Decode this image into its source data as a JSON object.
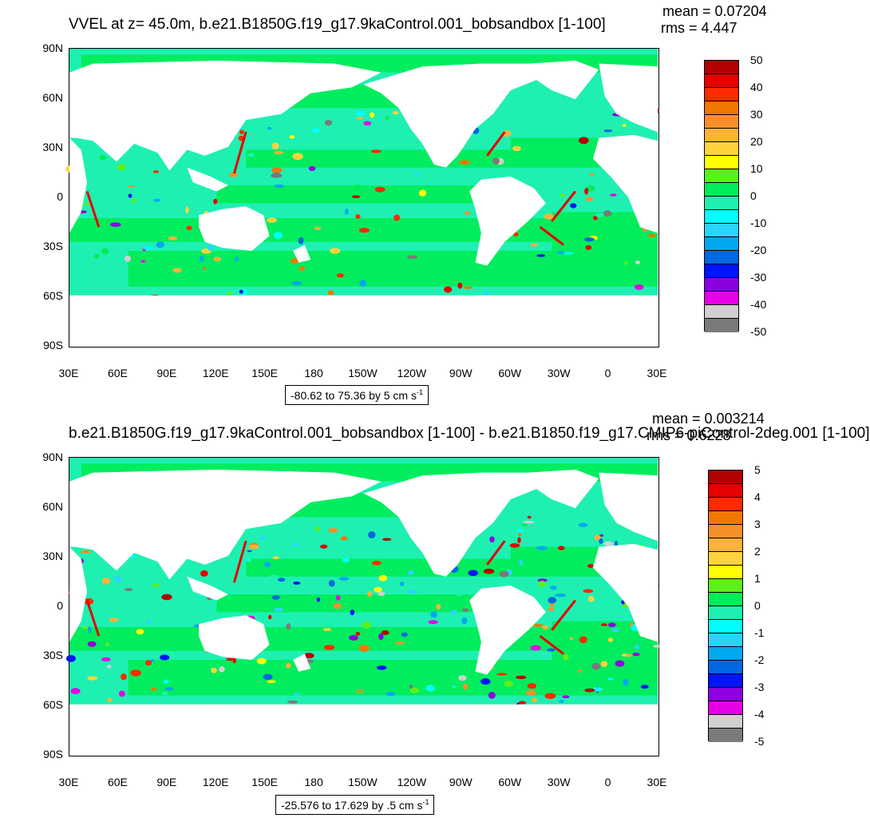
{
  "panels": [
    {
      "id": "top",
      "title": "VVEL at z=  45.0m, b.e21.B1850G.f19_g17.9kaControl.001_bobsandbox [1-100]",
      "mean_label": "mean = 0.07204",
      "rms_label": "rms = 4.447",
      "range_label": "-80.62 to 75.36 by 5 cm s",
      "range_unit_exp": "-1",
      "colorbar_labels": [
        "50",
        "40",
        "30",
        "20",
        "10",
        "0",
        "-10",
        "-20",
        "-30",
        "-40",
        "-50"
      ],
      "colorbar_colors": [
        "#b30000",
        "#e60000",
        "#ff2a00",
        "#f07800",
        "#f6902a",
        "#fdb23a",
        "#ffd33d",
        "#ffff00",
        "#5cf01a",
        "#00ec5a",
        "#1ef0b2",
        "#00ffff",
        "#2ad4ff",
        "#00a8f0",
        "#0068e0",
        "#0014ff",
        "#8c00e0",
        "#e600e6",
        "#d0d0d0",
        "#7a7a7a"
      ]
    },
    {
      "id": "bottom",
      "title": "b.e21.B1850G.f19_g17.9kaControl.001_bobsandbox [1-100] - b.e21.B1850.f19_g17.CMIP6-piControl-2deg.001 [1-100]",
      "mean_label": "mean = 0.003214",
      "rms_label": "rms = 0.6228",
      "range_label": "-25.576 to 17.629 by .5 cm s",
      "range_unit_exp": "-1",
      "colorbar_labels": [
        "5",
        "4",
        "3",
        "2",
        "1",
        "0",
        "-1",
        "-2",
        "-3",
        "-4",
        "-5"
      ],
      "colorbar_colors": [
        "#b30000",
        "#e60000",
        "#ff2a00",
        "#f07800",
        "#f6902a",
        "#fdb23a",
        "#ffd33d",
        "#ffff00",
        "#5cf01a",
        "#00ec5a",
        "#1ef0b2",
        "#00ffff",
        "#2ad4ff",
        "#00a8f0",
        "#0068e0",
        "#0014ff",
        "#8c00e0",
        "#e600e6",
        "#d0d0d0",
        "#7a7a7a"
      ]
    }
  ],
  "lat_labels": [
    "90N",
    "60N",
    "30N",
    "0",
    "30S",
    "60S",
    "90S"
  ],
  "lon_labels": [
    "30E",
    "60E",
    "90E",
    "120E",
    "150E",
    "180",
    "150W",
    "120W",
    "90W",
    "60W",
    "30W",
    "0",
    "30E"
  ],
  "ocean_base_color": "#1ef0b2",
  "land_color": "#ffffff"
}
